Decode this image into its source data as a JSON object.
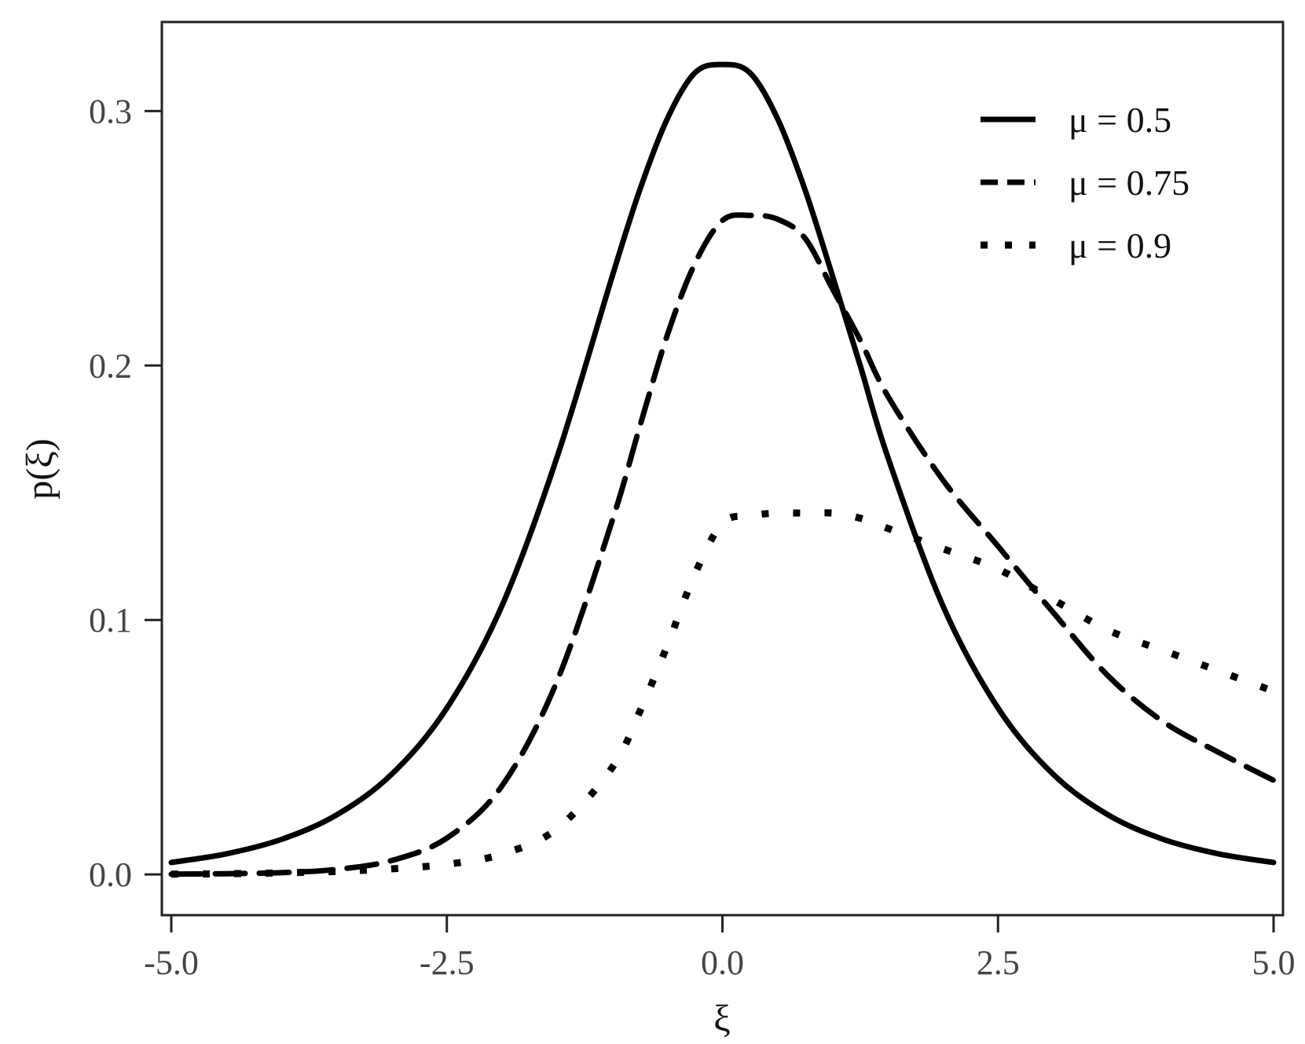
{
  "chart_data": {
    "type": "line",
    "title": "",
    "xlabel": "ξ",
    "ylabel": "p(ξ)",
    "xlim": [
      -5.0,
      5.0
    ],
    "ylim": [
      -0.016,
      0.335
    ],
    "x_ticks": [
      -5.0,
      -2.5,
      0.0,
      2.5,
      5.0
    ],
    "x_tick_labels": [
      "-5.0",
      "-2.5",
      "0.0",
      "2.5",
      "5.0"
    ],
    "y_ticks": [
      0.0,
      0.1,
      0.2,
      0.3
    ],
    "y_tick_labels": [
      "0.0",
      "0.1",
      "0.2",
      "0.3"
    ],
    "grid": false,
    "legend_position": "top-right",
    "x": [
      -5.0,
      -4.5,
      -4.0,
      -3.5,
      -3.0,
      -2.5,
      -2.0,
      -1.5,
      -1.0,
      -0.75,
      -0.5,
      -0.25,
      0.0,
      0.25,
      0.5,
      0.75,
      1.0,
      1.25,
      1.5,
      2.0,
      2.5,
      3.0,
      3.5,
      4.0,
      4.5,
      5.0
    ],
    "series": [
      {
        "name": "μ = 0.5",
        "style": "solid",
        "color": "#000000",
        "values": [
          0.0047,
          0.0081,
          0.0138,
          0.0234,
          0.0394,
          0.0654,
          0.1056,
          0.164,
          0.235,
          0.269,
          0.297,
          0.315,
          0.3183,
          0.315,
          0.297,
          0.269,
          0.235,
          0.2,
          0.164,
          0.1056,
          0.0654,
          0.0394,
          0.0234,
          0.0138,
          0.0081,
          0.0047
        ]
      },
      {
        "name": "μ = 0.75",
        "style": "dashed",
        "color": "#000000",
        "values": [
          0.0001,
          0.0003,
          0.0007,
          0.002,
          0.0055,
          0.0143,
          0.0348,
          0.076,
          0.139,
          0.176,
          0.212,
          0.24,
          0.257,
          0.259,
          0.2575,
          0.25,
          0.23,
          0.21,
          0.188,
          0.155,
          0.129,
          0.103,
          0.078,
          0.06,
          0.048,
          0.037
        ]
      },
      {
        "name": "μ = 0.9",
        "style": "dotted",
        "color": "#000000",
        "values": [
          0.0001,
          0.0003,
          0.0006,
          0.0012,
          0.0022,
          0.004,
          0.008,
          0.018,
          0.042,
          0.064,
          0.09,
          0.118,
          0.138,
          0.141,
          0.142,
          0.142,
          0.142,
          0.14,
          0.136,
          0.128,
          0.12,
          0.108,
          0.096,
          0.088,
          0.08,
          0.072
        ]
      }
    ]
  }
}
